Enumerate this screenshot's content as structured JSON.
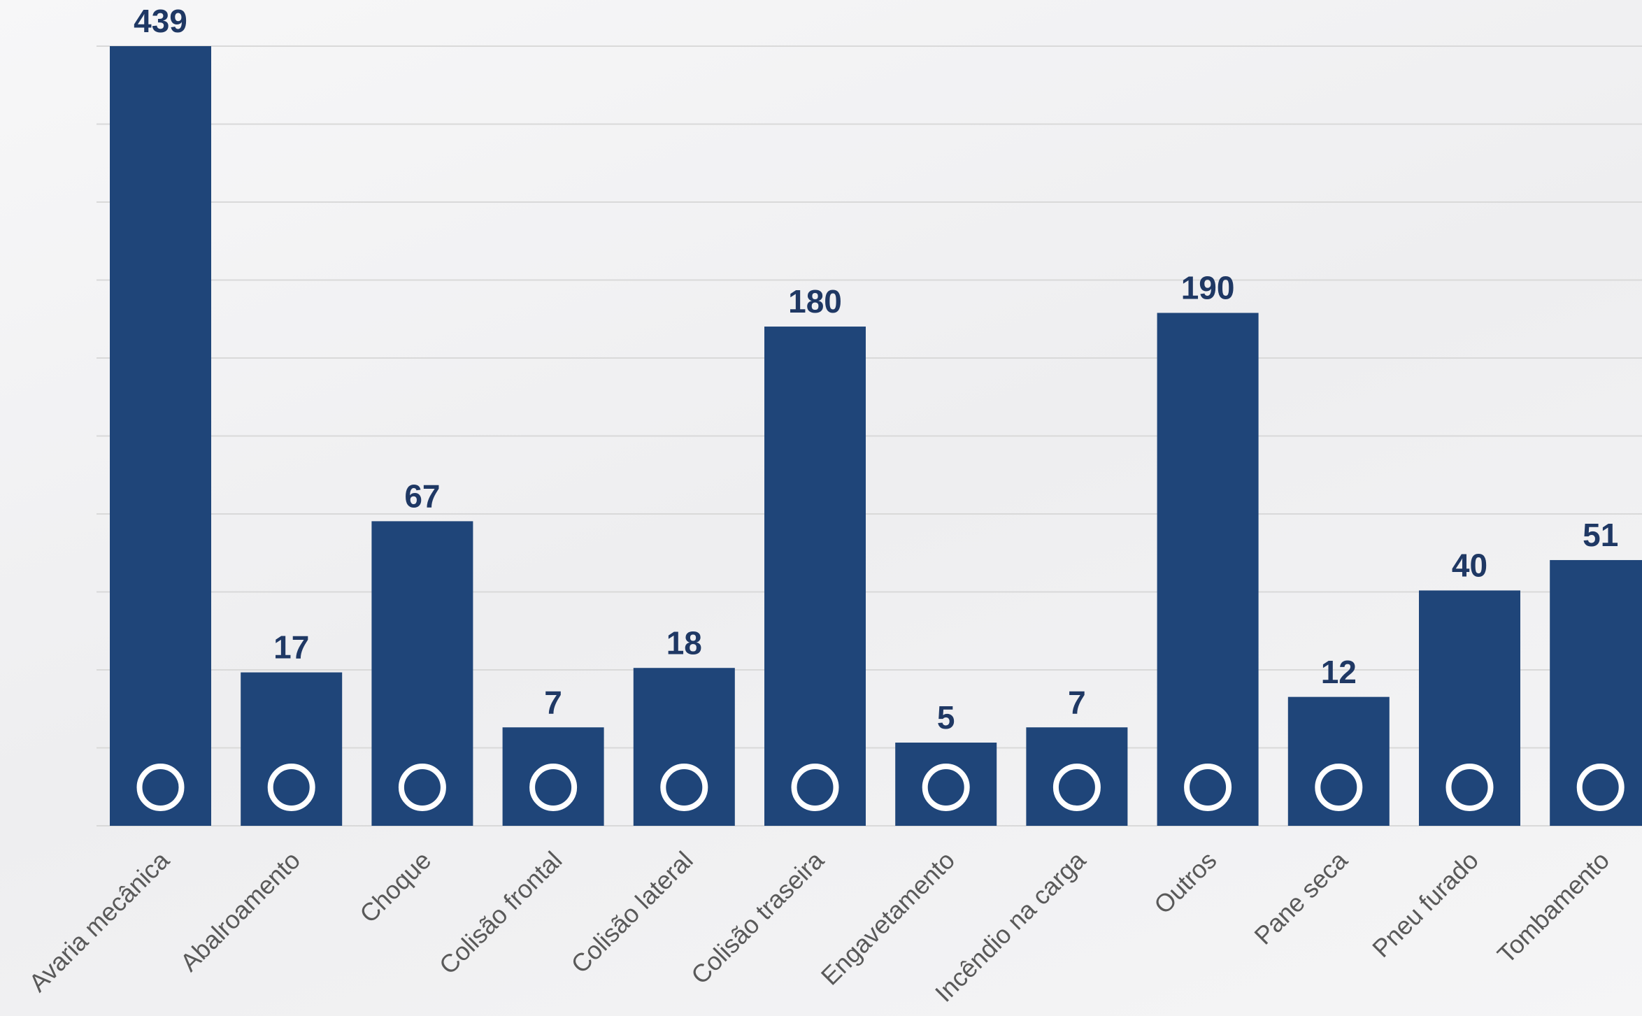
{
  "chart_data": {
    "type": "bar",
    "categories": [
      "Avaria mecânica",
      "Abalroamento",
      "Choque",
      "Colisão frontal",
      "Colisão lateral",
      "Colisão traseira",
      "Engavetamento",
      "Incêndio na carga",
      "Outros",
      "Pane seca",
      "Pneu furado",
      "Tombamento"
    ],
    "values": [
      439,
      17,
      67,
      7,
      18,
      180,
      5,
      7,
      190,
      12,
      40,
      51
    ],
    "color": "#1f4579",
    "y_scale": "sqrt",
    "ylim": [
      0,
      439
    ],
    "grid": true
  }
}
